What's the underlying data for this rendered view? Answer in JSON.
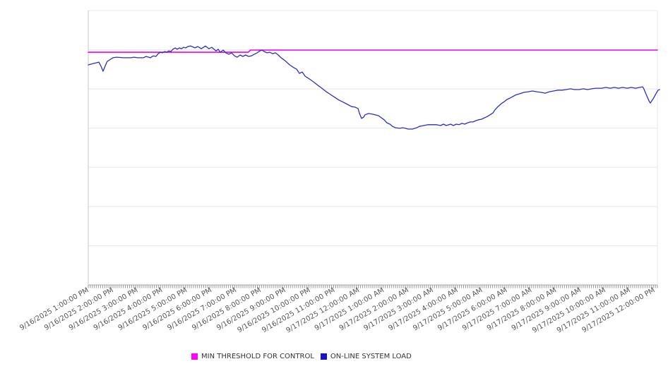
{
  "chart_data": {
    "type": "line",
    "title": "",
    "x_axis": {
      "tick_labels": [
        "9/16/2025 1:00:00 PM",
        "9/16/2025 2:00:00 PM",
        "9/16/2025 3:00:00 PM",
        "9/16/2025 4:00:00 PM",
        "9/16/2025 5:00:00 PM",
        "9/16/2025 6:00:00 PM",
        "9/16/2025 7:00:00 PM",
        "9/16/2025 8:00:00 PM",
        "9/16/2025 9:00:00 PM",
        "9/16/2025 10:00:00 PM",
        "9/16/2025 11:00:00 PM",
        "9/17/2025 12:00:00 AM",
        "9/17/2025 1:00:00 AM",
        "9/17/2025 2:00:00 AM",
        "9/17/2025 3:00:00 AM",
        "9/17/2025 4:00:00 AM",
        "9/17/2025 5:00:00 AM",
        "9/17/2025 6:00:00 AM",
        "9/17/2025 7:00:00 AM",
        "9/17/2025 8:00:00 AM",
        "9/17/2025 9:00:00 AM",
        "9/17/2025 10:00:00 AM",
        "9/17/2025 11:00:00 AM",
        "9/17/2025 12:00:00 PM"
      ],
      "label_rotation_deg": -30,
      "minor_ticks_per_hour": 12,
      "x_unit": "hours after 9/16/2025 1:00:00 PM"
    },
    "y_axis": {
      "tick_labels_visible": false,
      "ylim": [
        0,
        100
      ],
      "gridline_divisions": 7,
      "note": "no numeric y labels visible; values are percent of plot height"
    },
    "grid": true,
    "legend_position": "bottom-center",
    "series": [
      {
        "name": "MIN THRESHOLD FOR CONTROL",
        "color": "#ee00ee",
        "points": [
          [
            -0.12,
            84.8
          ],
          [
            6.38,
            84.8
          ],
          [
            6.47,
            85.6
          ],
          [
            23.0,
            85.6
          ]
        ]
      },
      {
        "name": "ON-LINE SYSTEM LOAD",
        "color": "#2d2dc7",
        "points": [
          [
            -0.12,
            80.2
          ],
          [
            0.08,
            80.7
          ],
          [
            0.31,
            81.2
          ],
          [
            0.4,
            79.7
          ],
          [
            0.48,
            77.9
          ],
          [
            0.57,
            79.9
          ],
          [
            0.65,
            81.5
          ],
          [
            0.88,
            82.8
          ],
          [
            1.03,
            83.0
          ],
          [
            1.31,
            82.8
          ],
          [
            1.6,
            82.8
          ],
          [
            1.74,
            83.0
          ],
          [
            1.89,
            82.8
          ],
          [
            2.12,
            82.8
          ],
          [
            2.23,
            83.3
          ],
          [
            2.4,
            82.8
          ],
          [
            2.52,
            83.5
          ],
          [
            2.63,
            83.3
          ],
          [
            2.72,
            84.3
          ],
          [
            2.81,
            84.8
          ],
          [
            2.89,
            84.6
          ],
          [
            2.98,
            85.1
          ],
          [
            3.06,
            84.8
          ],
          [
            3.15,
            85.3
          ],
          [
            3.24,
            85.1
          ],
          [
            3.32,
            85.9
          ],
          [
            3.41,
            86.4
          ],
          [
            3.49,
            85.9
          ],
          [
            3.58,
            86.4
          ],
          [
            3.67,
            86.1
          ],
          [
            3.75,
            86.6
          ],
          [
            3.84,
            86.4
          ],
          [
            3.92,
            86.9
          ],
          [
            4.04,
            87.1
          ],
          [
            4.21,
            86.4
          ],
          [
            4.33,
            86.9
          ],
          [
            4.47,
            86.1
          ],
          [
            4.64,
            87.1
          ],
          [
            4.78,
            86.1
          ],
          [
            4.9,
            86.6
          ],
          [
            5.07,
            85.3
          ],
          [
            5.16,
            85.9
          ],
          [
            5.24,
            84.8
          ],
          [
            5.36,
            85.6
          ],
          [
            5.47,
            84.6
          ],
          [
            5.59,
            84.1
          ],
          [
            5.7,
            84.6
          ],
          [
            5.82,
            83.5
          ],
          [
            5.93,
            83.0
          ],
          [
            6.05,
            83.8
          ],
          [
            6.16,
            83.3
          ],
          [
            6.27,
            83.8
          ],
          [
            6.39,
            83.3
          ],
          [
            6.51,
            83.5
          ],
          [
            6.62,
            84.1
          ],
          [
            6.74,
            84.6
          ],
          [
            6.85,
            85.3
          ],
          [
            6.94,
            85.6
          ],
          [
            7.02,
            85.1
          ],
          [
            7.14,
            84.6
          ],
          [
            7.25,
            84.8
          ],
          [
            7.37,
            84.3
          ],
          [
            7.48,
            84.6
          ],
          [
            7.6,
            83.8
          ],
          [
            7.71,
            82.8
          ],
          [
            7.88,
            81.7
          ],
          [
            8.06,
            80.2
          ],
          [
            8.23,
            79.2
          ],
          [
            8.34,
            78.7
          ],
          [
            8.46,
            77.1
          ],
          [
            8.57,
            77.6
          ],
          [
            8.69,
            76.1
          ],
          [
            8.86,
            75.1
          ],
          [
            9.03,
            74.0
          ],
          [
            9.2,
            72.8
          ],
          [
            9.37,
            71.7
          ],
          [
            9.55,
            70.4
          ],
          [
            9.72,
            69.4
          ],
          [
            9.89,
            68.4
          ],
          [
            10.06,
            67.4
          ],
          [
            10.24,
            66.6
          ],
          [
            10.41,
            65.8
          ],
          [
            10.58,
            65.0
          ],
          [
            10.72,
            64.8
          ],
          [
            10.84,
            64.3
          ],
          [
            10.89,
            62.7
          ],
          [
            10.98,
            60.7
          ],
          [
            11.07,
            61.2
          ],
          [
            11.12,
            62.0
          ],
          [
            11.27,
            62.5
          ],
          [
            11.44,
            62.2
          ],
          [
            11.67,
            61.7
          ],
          [
            11.9,
            60.2
          ],
          [
            12.01,
            59.1
          ],
          [
            12.13,
            58.6
          ],
          [
            12.24,
            57.8
          ],
          [
            12.36,
            57.3
          ],
          [
            12.53,
            57.1
          ],
          [
            12.65,
            57.3
          ],
          [
            12.76,
            57.1
          ],
          [
            12.87,
            56.8
          ],
          [
            13.05,
            56.8
          ],
          [
            13.22,
            57.3
          ],
          [
            13.33,
            57.8
          ],
          [
            13.51,
            58.1
          ],
          [
            13.68,
            58.4
          ],
          [
            13.85,
            58.4
          ],
          [
            14.02,
            58.4
          ],
          [
            14.19,
            58.1
          ],
          [
            14.31,
            58.6
          ],
          [
            14.42,
            58.1
          ],
          [
            14.6,
            58.6
          ],
          [
            14.71,
            58.1
          ],
          [
            14.83,
            58.6
          ],
          [
            14.94,
            58.4
          ],
          [
            15.06,
            58.9
          ],
          [
            15.17,
            58.6
          ],
          [
            15.29,
            59.1
          ],
          [
            15.4,
            59.4
          ],
          [
            15.51,
            59.4
          ],
          [
            15.63,
            59.9
          ],
          [
            15.74,
            60.2
          ],
          [
            15.86,
            60.4
          ],
          [
            15.97,
            60.9
          ],
          [
            16.09,
            61.4
          ],
          [
            16.2,
            62.0
          ],
          [
            16.32,
            62.7
          ],
          [
            16.4,
            63.8
          ],
          [
            16.52,
            65.0
          ],
          [
            16.66,
            66.1
          ],
          [
            16.78,
            66.8
          ],
          [
            16.89,
            67.6
          ],
          [
            17.01,
            68.1
          ],
          [
            17.12,
            68.6
          ],
          [
            17.23,
            69.2
          ],
          [
            17.41,
            69.7
          ],
          [
            17.58,
            70.2
          ],
          [
            17.75,
            70.4
          ],
          [
            17.92,
            70.7
          ],
          [
            18.1,
            70.4
          ],
          [
            18.27,
            70.2
          ],
          [
            18.44,
            69.9
          ],
          [
            18.61,
            70.4
          ],
          [
            18.78,
            70.7
          ],
          [
            18.96,
            71.0
          ],
          [
            19.13,
            71.0
          ],
          [
            19.3,
            71.2
          ],
          [
            19.47,
            71.5
          ],
          [
            19.64,
            71.2
          ],
          [
            19.82,
            71.2
          ],
          [
            19.99,
            71.5
          ],
          [
            20.16,
            71.2
          ],
          [
            20.33,
            71.5
          ],
          [
            20.5,
            71.7
          ],
          [
            20.73,
            71.7
          ],
          [
            20.91,
            72.0
          ],
          [
            21.08,
            71.7
          ],
          [
            21.25,
            72.0
          ],
          [
            21.42,
            71.7
          ],
          [
            21.59,
            72.0
          ],
          [
            21.77,
            71.7
          ],
          [
            21.94,
            72.0
          ],
          [
            22.11,
            71.7
          ],
          [
            22.28,
            72.0
          ],
          [
            22.4,
            72.2
          ],
          [
            22.45,
            71.5
          ],
          [
            22.57,
            68.9
          ],
          [
            22.66,
            67.1
          ],
          [
            22.71,
            66.3
          ],
          [
            22.83,
            67.9
          ],
          [
            22.94,
            69.7
          ],
          [
            23.03,
            71.0
          ],
          [
            23.09,
            71.2
          ]
        ]
      }
    ]
  },
  "legend": {
    "items": [
      {
        "label": "MIN THRESHOLD FOR CONTROL",
        "color": "#ff00ff"
      },
      {
        "label": "ON-LINE SYSTEM LOAD",
        "color": "#1414cc"
      }
    ]
  },
  "colors": {
    "background": "#ffffff",
    "gridline": "#e8e8e8",
    "left_axis_line": "#c9c9c9",
    "bottom_axis_line": "#aaaaaa",
    "tick": "#999999",
    "x_label_text": "#555555",
    "legend_text": "#333333"
  }
}
